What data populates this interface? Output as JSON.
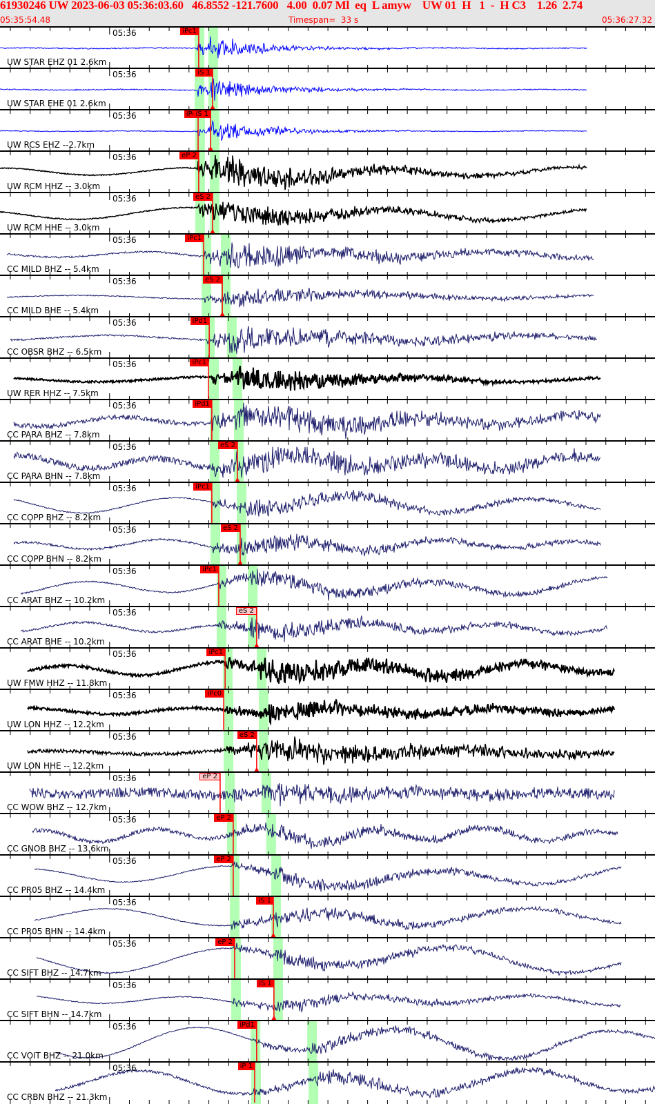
{
  "header": {
    "title": "61930246 UW 2023-06-03 05:36:03.60   46.8552 -121.7600   4.00  0.07 Ml  eq  L amyw    UW 01  H   1  -  H C3    1.26  2.74",
    "start_time": "05:35:54.48",
    "timespan": "Timespan=  33 s",
    "end_time": "05:36:27.32"
  },
  "chart_data": {
    "type": "line",
    "title": "",
    "x_axis": {
      "start": "05:35:54.48",
      "end": "05:36:27.32",
      "tick_interval_s": 1,
      "tick_label": "05:36"
    },
    "colors": {
      "pick": "#ff0000",
      "window": "#b3ffb3",
      "blue": "#0000ff",
      "black": "#000000",
      "navy": "#1c1c6b"
    },
    "time_unit": "seconds after 05:36:00",
    "panels": [
      {
        "label": "UW STAR EHZ 01 2.6km",
        "color": "#0000ff",
        "p_window": 4.53,
        "s_window": 5.22,
        "picks": [
          {
            "label": "iPc1",
            "time": 4.49,
            "style": "filled"
          }
        ]
      },
      {
        "label": "UW STAR EHE 01 2.6km",
        "color": "#0000ff",
        "p_window": 4.53,
        "s_window": 5.22,
        "picks": [
          {
            "label": "iS 1",
            "time": 5.19,
            "style": "filled"
          }
        ]
      },
      {
        "label": "UW RCS EHZ --2.7km",
        "color": "#0000ff",
        "p_window": 4.56,
        "s_window": 5.29,
        "picks": [
          {
            "label": "iPc",
            "time": 4.46,
            "style": "filled"
          },
          {
            "label": "iS 1",
            "time": 5.09,
            "style": "filled"
          }
        ]
      },
      {
        "label": "UW RCM HHZ -- 3.0km",
        "color": "#000000",
        "p_window": 4.56,
        "s_window": 5.29,
        "picks": [
          {
            "label": "eP 2",
            "time": 4.49,
            "style": "filled"
          }
        ]
      },
      {
        "label": "UW RCM HHE -- 3.0km",
        "color": "#000000",
        "p_window": 4.56,
        "s_window": 5.29,
        "picks": [
          {
            "label": "eS 2",
            "time": 5.19,
            "style": "filled"
          }
        ]
      },
      {
        "label": "CC MILD BHZ -- 5.4km",
        "color": "#1c1c6b",
        "p_window": 4.88,
        "s_window": 5.85,
        "picks": [
          {
            "label": "iPc1",
            "time": 4.74,
            "style": "filled"
          }
        ]
      },
      {
        "label": "CC MILD BHE -- 5.4km",
        "color": "#1c1c6b",
        "p_window": 4.88,
        "s_window": 5.85,
        "picks": [
          {
            "label": "eS 2",
            "time": 5.68,
            "style": "filled"
          }
        ]
      },
      {
        "label": "CC OBSR BHZ -- 6.5km",
        "color": "#1c1c6b",
        "p_window": 5.05,
        "s_window": 6.16,
        "picks": [
          {
            "label": "iPd1",
            "time": 5.02,
            "style": "filled"
          }
        ]
      },
      {
        "label": "UW RER HHZ -- 7.5km",
        "color": "#000000",
        "p_window": 5.26,
        "s_window": 6.44,
        "picks": [
          {
            "label": "iPc1",
            "time": 4.98,
            "style": "filled"
          }
        ]
      },
      {
        "label": "CC PARA BHZ -- 7.8km",
        "color": "#1c1c6b",
        "p_window": 5.29,
        "s_window": 6.51,
        "picks": [
          {
            "label": "iPd1",
            "time": 5.15,
            "style": "filled"
          }
        ]
      },
      {
        "label": "CC PARA BHN -- 7.8km",
        "color": "#1c1c6b",
        "p_window": 5.29,
        "s_window": 6.51,
        "picks": [
          {
            "label": "eS 2",
            "time": 6.44,
            "style": "filled"
          }
        ]
      },
      {
        "label": "CC COPP BHZ -- 8.2km",
        "color": "#1c1c6b",
        "p_window": 5.33,
        "s_window": 6.65,
        "picks": [
          {
            "label": "iPc1",
            "time": 5.15,
            "style": "filled"
          }
        ]
      },
      {
        "label": "CC COPP BHN -- 8.2km",
        "color": "#1c1c6b",
        "p_window": 5.33,
        "s_window": 6.65,
        "picks": [
          {
            "label": "eS 2",
            "time": 6.58,
            "style": "filled"
          }
        ]
      },
      {
        "label": "CC ARAT BHZ -- 10.2km",
        "color": "#1c1c6b",
        "p_window": 5.64,
        "s_window": 7.21,
        "picks": [
          {
            "label": "iPc1",
            "time": 5.5,
            "style": "filled"
          }
        ]
      },
      {
        "label": "CC ARAT BHE -- 10.2km",
        "color": "#1c1c6b",
        "p_window": 5.64,
        "s_window": 7.21,
        "picks": [
          {
            "label": "eS 2",
            "time": 7.41,
            "style": "outline"
          }
        ]
      },
      {
        "label": "UW FMW HHZ -- 11.8km",
        "color": "#000000",
        "p_window": 5.95,
        "s_window": 7.66,
        "picks": [
          {
            "label": "iPc1",
            "time": 5.82,
            "style": "filled"
          }
        ]
      },
      {
        "label": "UW LON HHZ -- 12.2km",
        "color": "#000000",
        "p_window": 5.99,
        "s_window": 7.76,
        "picks": [
          {
            "label": "iPc0",
            "time": 5.75,
            "style": "filled"
          }
        ]
      },
      {
        "label": "UW LON HHE -- 12.2km",
        "color": "#000000",
        "p_window": 5.99,
        "s_window": 7.76,
        "picks": [
          {
            "label": "eS 2",
            "time": 7.41,
            "style": "filled"
          }
        ]
      },
      {
        "label": "CC WOW BHZ -- 12.7km",
        "color": "#1c1c6b",
        "p_window": 6.06,
        "s_window": 7.9,
        "picks": [
          {
            "label": "eP 2",
            "time": 5.57,
            "style": "outline"
          }
        ]
      },
      {
        "label": "CC GNOB BHZ -- 13.6km",
        "color": "#1c1c6b",
        "p_window": 6.16,
        "s_window": 8.14,
        "picks": [
          {
            "label": "eP 2",
            "time": 6.23,
            "style": "filled"
          }
        ]
      },
      {
        "label": "CC PR05 BHZ -- 14.4km",
        "color": "#1c1c6b",
        "p_window": 6.3,
        "s_window": 8.39,
        "picks": [
          {
            "label": "eP 2",
            "time": 6.23,
            "style": "filled"
          }
        ]
      },
      {
        "label": "CC PR05 BHN -- 14.4km",
        "color": "#1c1c6b",
        "p_window": 6.3,
        "s_window": 8.39,
        "picks": [
          {
            "label": "iS 1",
            "time": 8.25,
            "style": "filled"
          }
        ]
      },
      {
        "label": "CC SIFT BHZ -- 14.7km",
        "color": "#1c1c6b",
        "p_window": 6.37,
        "s_window": 8.49,
        "picks": [
          {
            "label": "eP 2",
            "time": 6.3,
            "style": "filled"
          }
        ]
      },
      {
        "label": "CC SIFT BHN -- 14.7km",
        "color": "#1c1c6b",
        "p_window": 6.37,
        "s_window": 8.49,
        "picks": [
          {
            "label": "iS 1",
            "time": 8.28,
            "style": "filled"
          }
        ]
      },
      {
        "label": "CC VOIT BHZ -- 21.0km",
        "color": "#1c1c6b",
        "p_window": 7.35,
        "s_window": 10.2,
        "picks": [
          {
            "label": "iPd1",
            "time": 7.41,
            "style": "filled"
          }
        ]
      },
      {
        "label": "CC CRBN BHZ -- 21.3km",
        "color": "#1c1c6b",
        "p_window": 7.38,
        "s_window": 10.27,
        "picks": [
          {
            "label": "iP 1",
            "time": 7.31,
            "style": "filled"
          }
        ]
      }
    ]
  }
}
